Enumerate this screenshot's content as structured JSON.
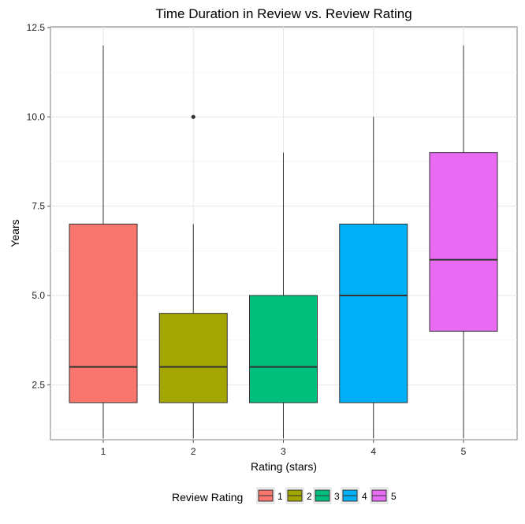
{
  "chart_data": {
    "type": "boxplot",
    "title": "Time Duration in Review vs. Review Rating",
    "xlabel": "Rating (stars)",
    "ylabel": "Years",
    "categories": [
      "1",
      "2",
      "3",
      "4",
      "5"
    ],
    "y_ticks": [
      "2.5",
      "5.0",
      "7.5",
      "10.0",
      "12.5"
    ],
    "ylim": [
      0.5,
      12.5
    ],
    "grid": true,
    "legend": {
      "title": "Review Rating",
      "position": "bottom"
    },
    "boxes": [
      {
        "category": "1",
        "min": 1,
        "q1": 2,
        "median": 3,
        "q3": 7,
        "max": 12,
        "outliers": [],
        "color": "#F8766D"
      },
      {
        "category": "2",
        "min": 1,
        "q1": 2,
        "median": 3,
        "q3": 4.5,
        "max": 7,
        "outliers": [
          10
        ],
        "color": "#A3A500"
      },
      {
        "category": "3",
        "min": 1,
        "q1": 2,
        "median": 3,
        "q3": 5,
        "max": 9,
        "outliers": [],
        "color": "#00BF7D"
      },
      {
        "category": "4",
        "min": 1,
        "q1": 2,
        "median": 5,
        "q3": 7,
        "max": 10,
        "outliers": [],
        "color": "#00B0F6"
      },
      {
        "category": "5",
        "min": 1,
        "q1": 4,
        "median": 6,
        "q3": 9,
        "max": 12,
        "outliers": [],
        "color": "#E76BF3"
      }
    ]
  }
}
